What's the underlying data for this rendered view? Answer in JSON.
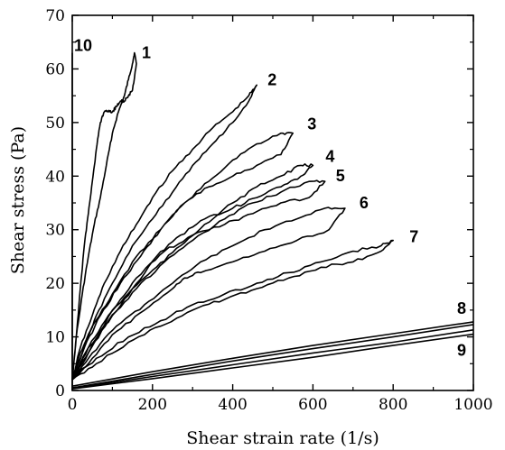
{
  "chart_data": {
    "type": "line",
    "xlabel": "Shear strain rate (1/s)",
    "ylabel": "Shear stress (Pa)",
    "xlim": [
      0,
      1000
    ],
    "ylim": [
      0,
      70
    ],
    "x_ticks": [
      0,
      200,
      400,
      600,
      800,
      1000
    ],
    "y_ticks": [
      0,
      10,
      20,
      30,
      40,
      50,
      60,
      70
    ],
    "grid": false,
    "legend": "none",
    "series": [
      {
        "name": "1",
        "x": [
          0,
          10,
          25,
          40,
          55,
          70,
          85,
          100,
          115,
          130,
          140,
          150,
          155,
          160,
          150,
          140,
          130,
          120,
          110,
          100,
          90,
          80,
          70,
          60,
          50,
          40,
          30,
          20,
          10,
          0
        ],
        "y": [
          2,
          10,
          18,
          25,
          31,
          36,
          42,
          48,
          52,
          55,
          58,
          61,
          63,
          61,
          56,
          55,
          54,
          54,
          53,
          52,
          52,
          52,
          50,
          45,
          39,
          33,
          27,
          19,
          10,
          2
        ]
      },
      {
        "name": "2",
        "x": [
          0,
          20,
          50,
          80,
          120,
          160,
          200,
          250,
          300,
          350,
          400,
          440,
          460,
          440,
          400,
          350,
          300,
          250,
          200,
          150,
          100,
          60,
          30,
          0
        ],
        "y": [
          2,
          8,
          14,
          20,
          26,
          31,
          36,
          41,
          45,
          49,
          52,
          55,
          57,
          54,
          50,
          46,
          42,
          37,
          32,
          27,
          20,
          14,
          8,
          2
        ]
      },
      {
        "name": "3",
        "x": [
          0,
          30,
          70,
          120,
          170,
          220,
          280,
          340,
          400,
          460,
          520,
          550,
          520,
          460,
          400,
          340,
          280,
          220,
          160,
          100,
          50,
          20,
          0
        ],
        "y": [
          2,
          8,
          14,
          20,
          25,
          30,
          35,
          39,
          43,
          46,
          48,
          48,
          44,
          42,
          40,
          38,
          35,
          30,
          25,
          18,
          12,
          7,
          2
        ]
      },
      {
        "name": "4",
        "x": [
          0,
          40,
          90,
          150,
          210,
          270,
          330,
          400,
          460,
          520,
          570,
          600,
          570,
          520,
          460,
          400,
          330,
          270,
          210,
          150,
          90,
          40,
          0
        ],
        "y": [
          2,
          8,
          14,
          19,
          23,
          27,
          31,
          35,
          38,
          40,
          42,
          42,
          40,
          38,
          36,
          34,
          32,
          29,
          25,
          19,
          13,
          7,
          2
        ]
      },
      {
        "name": "5",
        "x": [
          0,
          40,
          100,
          160,
          230,
          300,
          380,
          450,
          520,
          590,
          630,
          590,
          520,
          450,
          380,
          300,
          230,
          160,
          100,
          40,
          0
        ],
        "y": [
          2,
          8,
          14,
          19,
          24,
          28,
          32,
          35,
          37,
          39,
          39,
          36,
          35,
          33,
          31,
          29,
          26,
          21,
          15,
          7,
          2
        ]
      },
      {
        "name": "6",
        "x": [
          0,
          50,
          110,
          180,
          250,
          320,
          400,
          480,
          560,
          630,
          680,
          640,
          560,
          480,
          400,
          320,
          280,
          250,
          180,
          110,
          50,
          0
        ],
        "y": [
          2,
          7,
          12,
          16,
          20,
          24,
          27,
          30,
          32,
          34,
          34,
          30,
          28,
          26,
          24,
          22,
          21,
          19,
          15,
          11,
          6,
          2
        ]
      },
      {
        "name": "7",
        "x": [
          0,
          60,
          140,
          220,
          300,
          380,
          460,
          540,
          620,
          700,
          770,
          800,
          770,
          700,
          620,
          540,
          460,
          380,
          300,
          220,
          140,
          60,
          0
        ],
        "y": [
          2,
          6,
          10,
          13,
          16,
          18,
          20,
          22,
          24,
          26,
          27,
          28,
          26,
          24,
          23,
          21,
          19,
          17,
          15,
          12,
          9,
          5,
          2
        ]
      },
      {
        "name": "8",
        "x": [
          0,
          200,
          400,
          600,
          800,
          1000
        ],
        "y": [
          0.5,
          3,
          5.5,
          7.8,
          10,
          12.3
        ]
      },
      {
        "name": "9",
        "x": [
          0,
          200,
          400,
          600,
          800,
          1000
        ],
        "y": [
          0.3,
          2.2,
          4.2,
          6.2,
          8.4,
          10.5
        ]
      },
      {
        "name": "10",
        "x": [
          0,
          0
        ],
        "y": [
          0,
          63
        ]
      }
    ],
    "extra_lines": [
      {
        "x": [
          0,
          200,
          400,
          600,
          800,
          1000
        ],
        "y": [
          0.8,
          3.5,
          6,
          8.4,
          10.6,
          12.8
        ]
      },
      {
        "x": [
          0,
          200,
          400,
          600,
          800,
          1000
        ],
        "y": [
          0.4,
          2.6,
          4.8,
          7,
          9,
          11.3
        ]
      }
    ]
  }
}
